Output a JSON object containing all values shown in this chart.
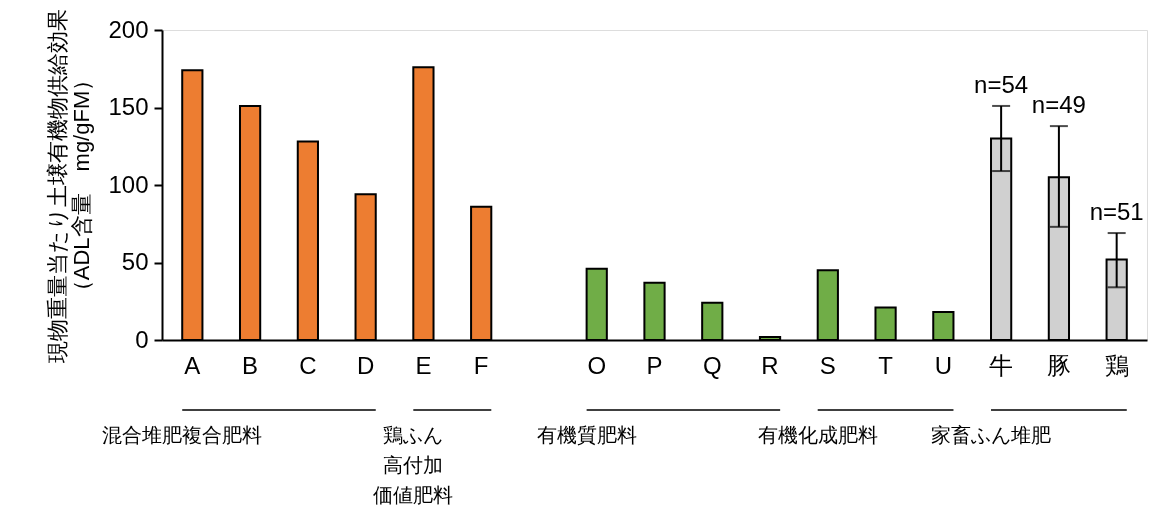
{
  "chart_data": {
    "type": "bar",
    "ylabel": "現物重量当たり土壌有機物供給効果（ADL含量　mg/gFM）",
    "categories": [
      "A",
      "B",
      "C",
      "D",
      "E",
      "F",
      null,
      "O",
      "P",
      "Q",
      "R",
      "S",
      "T",
      "U",
      "牛",
      "豚",
      "鶏"
    ],
    "values": [
      174,
      151,
      128,
      94,
      176,
      86,
      null,
      46,
      37,
      24,
      2,
      45,
      21,
      18,
      130,
      105,
      52
    ],
    "colors": [
      "#ed7d31",
      "#ed7d31",
      "#ed7d31",
      "#ed7d31",
      "#ed7d31",
      "#ed7d31",
      null,
      "#70ad47",
      "#70ad47",
      "#70ad47",
      "#70ad47",
      "#70ad47",
      "#70ad47",
      "#70ad47",
      "#d0d0d0",
      "#d0d0d0",
      "#d0d0d0"
    ],
    "errors": [
      null,
      null,
      null,
      null,
      null,
      null,
      null,
      null,
      null,
      null,
      null,
      null,
      null,
      null,
      [
        109,
        151
      ],
      [
        73,
        138
      ],
      [
        34,
        69
      ]
    ],
    "annotations": [
      "混合堆肥複合肥料",
      "鶏ふん高付加価値肥料",
      "有機質肥料",
      "有機化成肥料",
      "家畜ふん堆肥",
      {
        "text": "n=54",
        "x": "牛",
        "y": 151
      },
      {
        "text": "n=49",
        "x": "豚",
        "y": 138
      },
      {
        "text": "n=51",
        "x": "鶏",
        "y": 69
      }
    ],
    "ylim": [
      0,
      200
    ],
    "yticks": [
      0,
      50,
      100,
      150,
      200
    ],
    "grid": false
  }
}
